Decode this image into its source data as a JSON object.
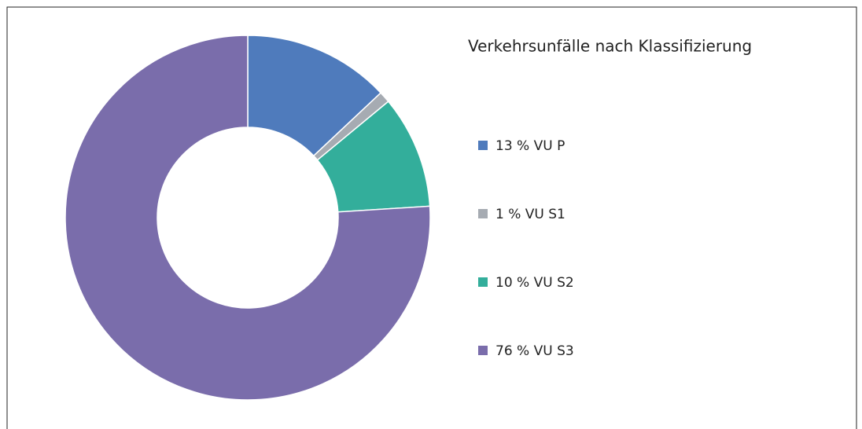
{
  "chart_data": {
    "type": "donut",
    "title": "Verkehrsunfälle nach Klassifizierung",
    "categories": [
      "13 % VU P",
      "1 % VU S1",
      "10 % VU S2",
      "76 % VU S3"
    ],
    "values": [
      13,
      1,
      10,
      76
    ],
    "colors": [
      "#4f7bbc",
      "#a6abb2",
      "#33ae9b",
      "#7a6dab"
    ],
    "legend": "right"
  }
}
